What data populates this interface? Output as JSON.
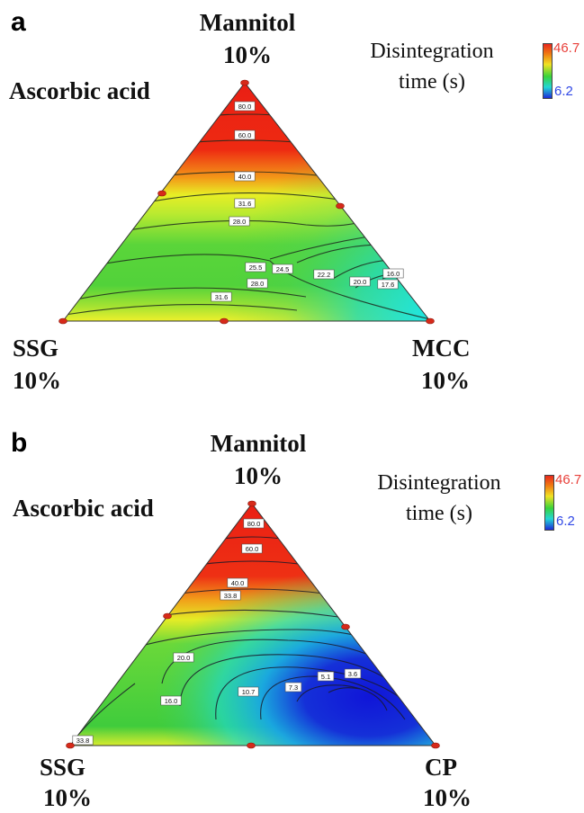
{
  "chart_data": [
    {
      "type": "ternary-contour",
      "panel": "a",
      "vertices": {
        "top": {
          "component": "Mannitol",
          "level": "10%"
        },
        "bottom_left": {
          "component": "SSG",
          "level": "10%"
        },
        "bottom_right": {
          "component": "MCC",
          "level": "10%"
        }
      },
      "side_label": "Ascorbic acid",
      "legend_title": [
        "Disintegration",
        "time (s)"
      ],
      "color_scale": {
        "max": "46.7",
        "min": "6.2"
      },
      "contour_labels": [
        "80.0",
        "60.0",
        "40.0",
        "31.6",
        "28.0",
        "25.5",
        "24.5",
        "22.2",
        "20.0",
        "16.0",
        "17.6",
        "28.0",
        "31.6"
      ]
    },
    {
      "type": "ternary-contour",
      "panel": "b",
      "vertices": {
        "top": {
          "component": "Mannitol",
          "level": "10%"
        },
        "bottom_left": {
          "component": "SSG",
          "level": "10%"
        },
        "bottom_right": {
          "component": "CP",
          "level": "10%"
        }
      },
      "side_label": "Ascorbic acid",
      "legend_title": [
        "Disintegration",
        "time (s)"
      ],
      "color_scale": {
        "max": "46.7",
        "min": "6.2"
      },
      "contour_labels": [
        "80.0",
        "60.0",
        "40.0",
        "33.8",
        "20.0",
        "16.0",
        "10.7",
        "7.3",
        "5.1",
        "3.6",
        "33.8"
      ]
    }
  ]
}
